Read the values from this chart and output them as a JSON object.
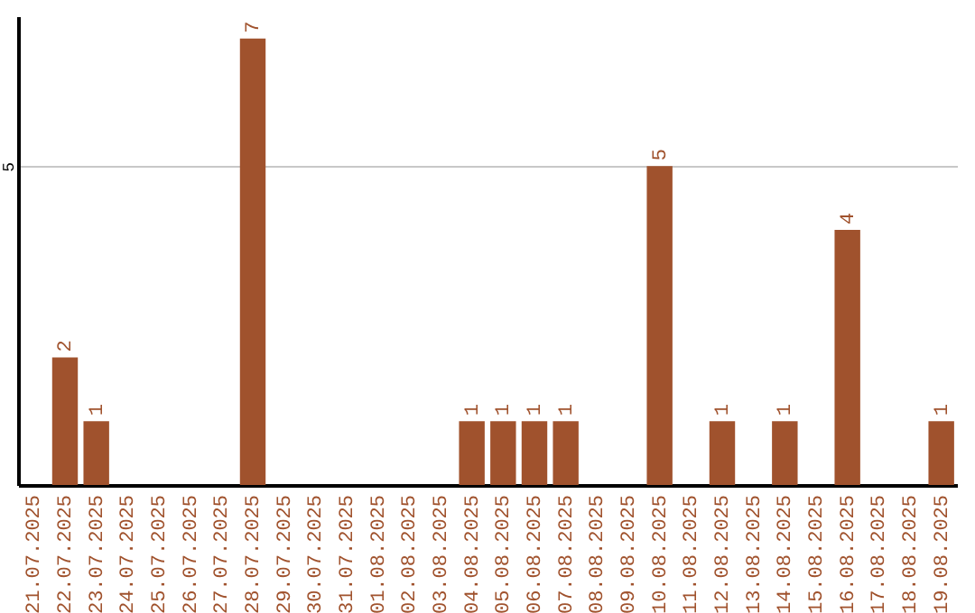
{
  "chart_data": {
    "type": "bar",
    "categories": [
      "21.07.2025",
      "22.07.2025",
      "23.07.2025",
      "24.07.2025",
      "25.07.2025",
      "26.07.2025",
      "27.07.2025",
      "28.07.2025",
      "29.07.2025",
      "30.07.2025",
      "31.07.2025",
      "01.08.2025",
      "02.08.2025",
      "03.08.2025",
      "04.08.2025",
      "05.08.2025",
      "06.08.2025",
      "07.08.2025",
      "08.08.2025",
      "09.08.2025",
      "10.08.2025",
      "11.08.2025",
      "12.08.2025",
      "13.08.2025",
      "14.08.2025",
      "15.08.2025",
      "16.08.2025",
      "17.08.2025",
      "18.08.2025",
      "19.08.2025"
    ],
    "values": [
      0,
      2,
      1,
      0,
      0,
      0,
      0,
      7,
      0,
      0,
      0,
      0,
      0,
      0,
      1,
      1,
      1,
      1,
      0,
      0,
      5,
      0,
      1,
      0,
      1,
      0,
      4,
      0,
      0,
      1
    ],
    "value_labels": [
      null,
      "2",
      "1",
      null,
      null,
      null,
      null,
      "7",
      null,
      null,
      null,
      null,
      null,
      null,
      "1",
      "1",
      "1",
      "1",
      null,
      null,
      "5",
      null,
      "1",
      null,
      "1",
      null,
      "4",
      null,
      null,
      "1"
    ],
    "color": "#a0522d",
    "ylim": [
      0,
      7.35
    ],
    "yticks": [
      5
    ],
    "grid": "y"
  }
}
